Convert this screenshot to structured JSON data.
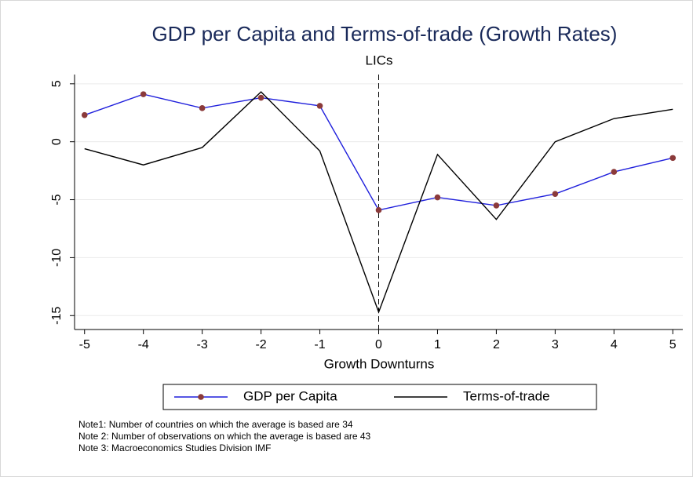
{
  "chart_data": {
    "type": "line",
    "title": "GDP per Capita and Terms-of-trade (Growth Rates)",
    "subtitle": "LICs",
    "x_label": "Growth Downturns",
    "x": [
      -5,
      -4,
      -3,
      -2,
      -1,
      0,
      1,
      2,
      3,
      4,
      5
    ],
    "series": [
      {
        "name": "GDP per Capita",
        "color": "#1f1fdc",
        "marker_color": "#8b3a3a",
        "markers": true,
        "values": [
          2.3,
          4.1,
          2.9,
          3.8,
          3.1,
          -5.9,
          -4.8,
          -5.5,
          -4.5,
          -2.6,
          -1.4
        ]
      },
      {
        "name": "Terms-of-trade",
        "color": "#000000",
        "markers": false,
        "values": [
          -0.6,
          -2.0,
          -0.5,
          4.3,
          -0.8,
          -14.7,
          -1.1,
          -6.7,
          0.0,
          2.0,
          2.8
        ]
      }
    ],
    "xlim": [
      -5.17,
      5.17
    ],
    "ylim": [
      -16.2,
      5.8
    ],
    "xticks": [
      -5,
      -4,
      -3,
      -2,
      -1,
      0,
      1,
      2,
      3,
      4,
      5
    ],
    "yticks": [
      5,
      0,
      -5,
      -10,
      -15
    ],
    "xline": 0,
    "grid": true,
    "notes": [
      "Note1: Number of countries on which the average is based are 34",
      "Note 2: Number of observations on which the average is based are 43",
      "Note 3: Macroeconomics Studies Division IMF"
    ]
  }
}
